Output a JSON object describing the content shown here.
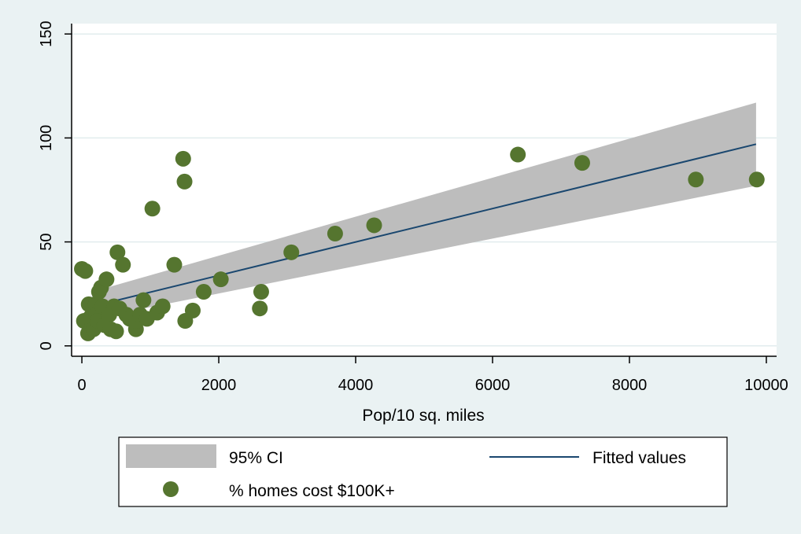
{
  "colors": {
    "background": "#eaf2f3",
    "plot_background": "#ffffff",
    "grid": "#e1ecee",
    "ci_band": "#bdbdbd",
    "fit_line": "#1a476f",
    "marker": "#55752f",
    "axis": "#000000"
  },
  "chart_data": {
    "type": "scatter",
    "title": "",
    "xlabel": "Pop/10 sq. miles",
    "ylabel": "",
    "xlim": [
      -150,
      10150
    ],
    "ylim": [
      -5,
      155
    ],
    "xticks": [
      0,
      2000,
      4000,
      6000,
      8000,
      10000
    ],
    "yticks": [
      0,
      50,
      100,
      150
    ],
    "xtick_labels": [
      "0",
      "2000",
      "4000",
      "6000",
      "8000",
      "10000"
    ],
    "ytick_labels": [
      "0",
      "50",
      "100",
      "150"
    ],
    "grid": true,
    "legend_position": "bottom",
    "series": [
      {
        "name": "95% CI",
        "kind": "band",
        "x": [
          150,
          9850
        ],
        "lower": [
          13,
          77
        ],
        "upper": [
          26,
          117
        ]
      },
      {
        "name": "Fitted values",
        "kind": "line",
        "x": [
          150,
          9850
        ],
        "y": [
          19,
          97
        ]
      },
      {
        "name": "% homes cost $100K+",
        "kind": "scatter",
        "points": [
          [
            0,
            37
          ],
          [
            50,
            36
          ],
          [
            30,
            12
          ],
          [
            90,
            6
          ],
          [
            100,
            20
          ],
          [
            130,
            14
          ],
          [
            150,
            10
          ],
          [
            170,
            8
          ],
          [
            200,
            20
          ],
          [
            210,
            15
          ],
          [
            230,
            12
          ],
          [
            250,
            26
          ],
          [
            280,
            28
          ],
          [
            300,
            19
          ],
          [
            330,
            10
          ],
          [
            360,
            32
          ],
          [
            400,
            15
          ],
          [
            420,
            8
          ],
          [
            470,
            19
          ],
          [
            500,
            7
          ],
          [
            520,
            45
          ],
          [
            550,
            18
          ],
          [
            600,
            39
          ],
          [
            650,
            15
          ],
          [
            700,
            13
          ],
          [
            790,
            8
          ],
          [
            800,
            12
          ],
          [
            850,
            15
          ],
          [
            900,
            22
          ],
          [
            950,
            13
          ],
          [
            1030,
            66
          ],
          [
            1100,
            16
          ],
          [
            1180,
            19
          ],
          [
            1350,
            39
          ],
          [
            1480,
            90
          ],
          [
            1500,
            79
          ],
          [
            1510,
            12
          ],
          [
            1620,
            17
          ],
          [
            1780,
            26
          ],
          [
            2030,
            32
          ],
          [
            2600,
            18
          ],
          [
            2620,
            26
          ],
          [
            3060,
            45
          ],
          [
            3700,
            54
          ],
          [
            4270,
            58
          ],
          [
            6370,
            92
          ],
          [
            7310,
            88
          ],
          [
            8970,
            80
          ],
          [
            9860,
            80
          ]
        ]
      }
    ]
  },
  "legend": {
    "items": [
      {
        "label": "95% CI",
        "symbol": "band"
      },
      {
        "label": "Fitted values",
        "symbol": "line"
      },
      {
        "label": "% homes cost $100K+",
        "symbol": "marker"
      }
    ]
  }
}
